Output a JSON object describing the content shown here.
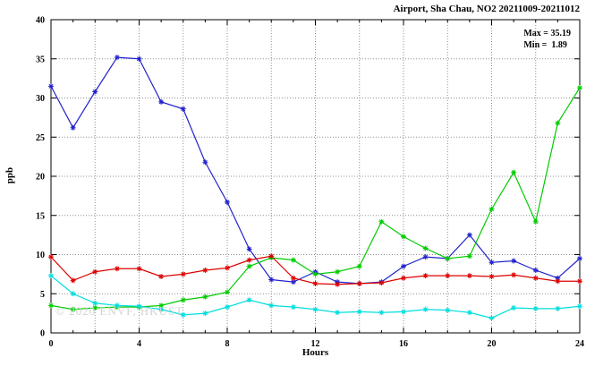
{
  "header": {
    "title": "Airport, Sha Chau, NO2 20211009-20211012"
  },
  "annotation": {
    "lines": [
      "Max = 35.19",
      "Min =  1.89"
    ]
  },
  "watermark": "© 2020 ENVF, HKUST",
  "chart_data": {
    "type": "line",
    "title": "Airport, Sha Chau, NO2 20211009-20211012",
    "xlabel": "Hours",
    "ylabel": "ppb",
    "xlim": [
      0,
      24
    ],
    "ylim": [
      0,
      40
    ],
    "x_tick_labels": [
      0,
      4,
      8,
      12,
      16,
      20,
      24
    ],
    "y_tick_labels": [
      0,
      5,
      10,
      15,
      20,
      25,
      30,
      35,
      40
    ],
    "grid_x_step": 2,
    "grid_y_step": 5,
    "grid": true,
    "legend": "none",
    "stats": {
      "max": 35.19,
      "min": 1.89
    },
    "x": [
      0,
      1,
      2,
      3,
      4,
      5,
      6,
      7,
      8,
      9,
      10,
      11,
      12,
      13,
      14,
      15,
      16,
      17,
      18,
      19,
      20,
      21,
      22,
      23,
      24
    ],
    "series": [
      {
        "name": "blue",
        "color": "#2222cc",
        "values": [
          31.5,
          26.2,
          30.8,
          35.19,
          35.0,
          29.5,
          28.6,
          21.8,
          16.7,
          10.7,
          6.8,
          6.5,
          7.8,
          6.5,
          6.3,
          6.5,
          8.5,
          9.7,
          9.5,
          12.5,
          9.0,
          9.2,
          8.0,
          7.0,
          9.5
        ]
      },
      {
        "name": "green",
        "color": "#00cc00",
        "values": [
          3.5,
          3.0,
          3.2,
          3.3,
          3.3,
          3.5,
          4.2,
          4.6,
          5.2,
          8.5,
          9.6,
          9.3,
          7.5,
          7.8,
          8.5,
          14.2,
          12.3,
          10.8,
          9.5,
          9.8,
          15.8,
          20.5,
          14.2,
          26.8,
          31.3
        ]
      },
      {
        "name": "red",
        "color": "#dd0000",
        "values": [
          9.7,
          6.7,
          7.8,
          8.2,
          8.2,
          7.2,
          7.5,
          8.0,
          8.3,
          9.3,
          9.8,
          7.0,
          6.3,
          6.2,
          6.3,
          6.4,
          7.0,
          7.3,
          7.3,
          7.3,
          7.2,
          7.4,
          7.0,
          6.6,
          6.6
        ]
      },
      {
        "name": "cyan",
        "color": "#00dede",
        "values": [
          7.3,
          5.0,
          3.8,
          3.5,
          3.4,
          3.0,
          2.3,
          2.5,
          3.3,
          4.2,
          3.5,
          3.3,
          3.0,
          2.6,
          2.7,
          2.6,
          2.7,
          3.0,
          2.9,
          2.6,
          1.89,
          3.2,
          3.1,
          3.1,
          3.4
        ]
      }
    ]
  }
}
